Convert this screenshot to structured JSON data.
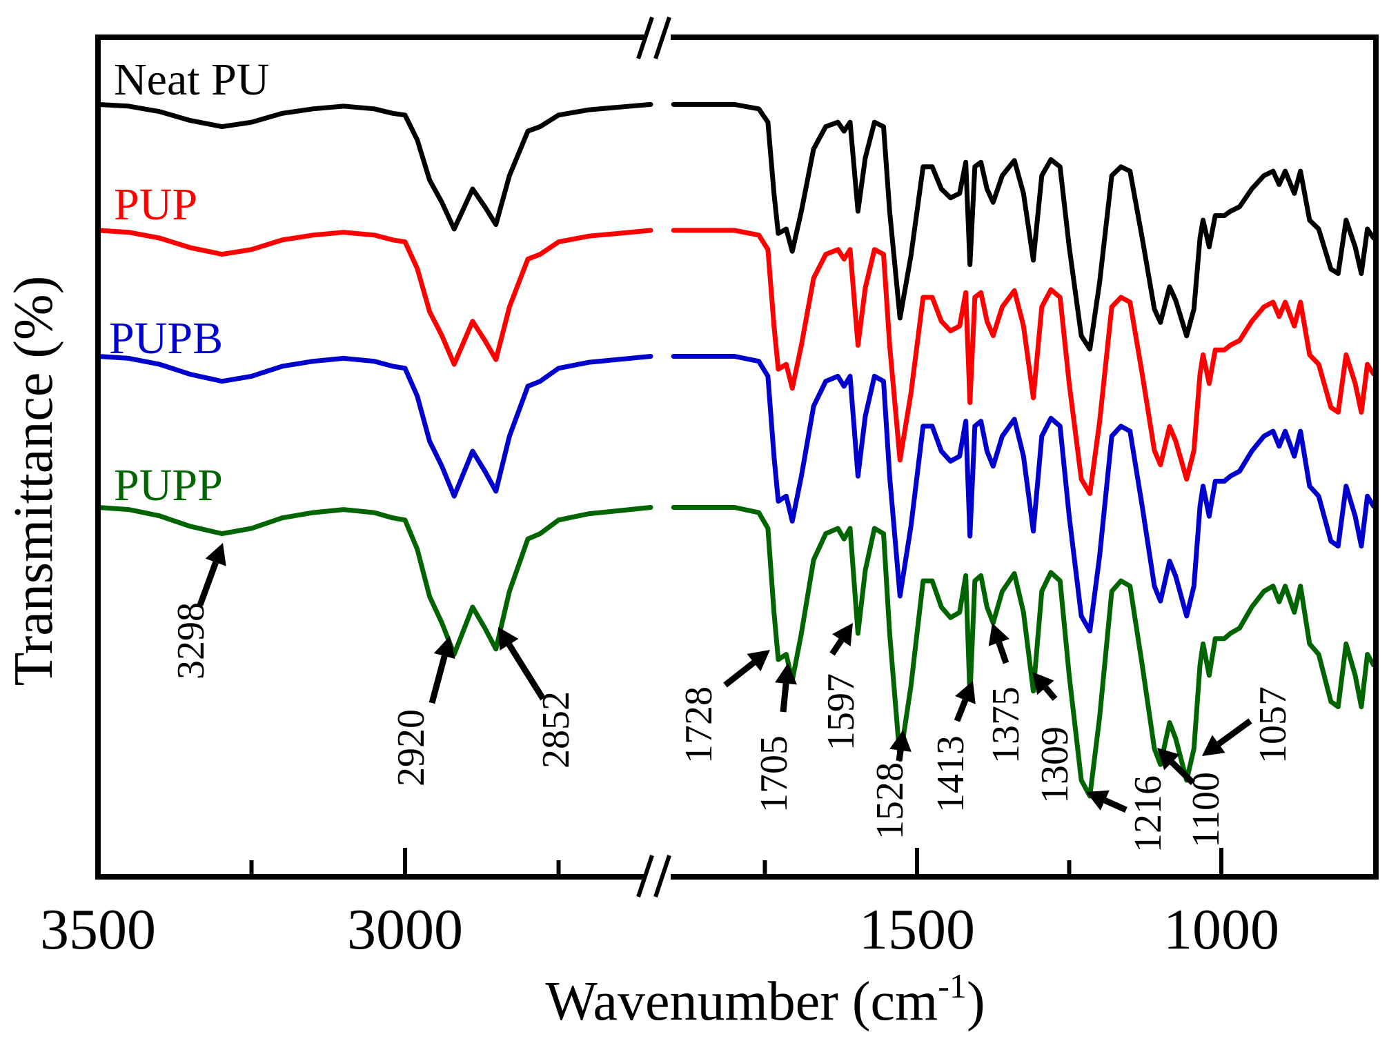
{
  "chart_data": {
    "type": "line",
    "title": "",
    "xlabel": "Wavenumber (cm",
    "xlabel_sup": "-1",
    "xlabel_close": ")",
    "ylabel": "Transmittance (%)",
    "xlim_left": [
      3500,
      2600
    ],
    "xlim_right": [
      1900,
      750
    ],
    "ylim": [
      0,
      100
    ],
    "x_ticks": [
      {
        "value": 3500,
        "label": "3500",
        "major": true
      },
      {
        "value": 3250,
        "label": "",
        "major": false
      },
      {
        "value": 3000,
        "label": "3000",
        "major": true
      },
      {
        "value": 2750,
        "label": "",
        "major": false
      },
      {
        "value": 1750,
        "label": "",
        "major": false
      },
      {
        "value": 1500,
        "label": "1500",
        "major": true
      },
      {
        "value": 1250,
        "label": "",
        "major": false
      },
      {
        "value": 1000,
        "label": "1000",
        "major": true
      }
    ],
    "axis_break": true,
    "profile_note": "relative transmittance drop (%) vs wavenumber, shared shape",
    "profile_left": [
      [
        3500,
        0
      ],
      [
        3450,
        0.2
      ],
      [
        3400,
        0.8
      ],
      [
        3350,
        1.8
      ],
      [
        3298,
        2.5
      ],
      [
        3250,
        2.0
      ],
      [
        3200,
        1.0
      ],
      [
        3150,
        0.5
      ],
      [
        3100,
        0.2
      ],
      [
        3050,
        0.5
      ],
      [
        3020,
        1.0
      ],
      [
        3000,
        1.2
      ],
      [
        2980,
        4.0
      ],
      [
        2960,
        8.5
      ],
      [
        2940,
        11.0
      ],
      [
        2920,
        14.0
      ],
      [
        2890,
        9.5
      ],
      [
        2870,
        11.5
      ],
      [
        2852,
        13.5
      ],
      [
        2830,
        8.0
      ],
      [
        2800,
        3.0
      ],
      [
        2780,
        2.5
      ],
      [
        2750,
        1.2
      ],
      [
        2700,
        0.6
      ],
      [
        2650,
        0.3
      ],
      [
        2600,
        0
      ]
    ],
    "profile_right": [
      [
        1900,
        0
      ],
      [
        1800,
        0
      ],
      [
        1760,
        0.5
      ],
      [
        1745,
        2.0
      ],
      [
        1735,
        10.0
      ],
      [
        1728,
        14.5
      ],
      [
        1715,
        14.0
      ],
      [
        1705,
        16.5
      ],
      [
        1690,
        12.0
      ],
      [
        1670,
        5.0
      ],
      [
        1650,
        2.5
      ],
      [
        1630,
        2.0
      ],
      [
        1620,
        3.0
      ],
      [
        1610,
        2.0
      ],
      [
        1597,
        12.0
      ],
      [
        1585,
        6.0
      ],
      [
        1570,
        2.0
      ],
      [
        1555,
        2.5
      ],
      [
        1545,
        12.0
      ],
      [
        1528,
        24.0
      ],
      [
        1510,
        17.0
      ],
      [
        1490,
        7.0
      ],
      [
        1475,
        7.0
      ],
      [
        1460,
        9.5
      ],
      [
        1445,
        10.5
      ],
      [
        1430,
        10.0
      ],
      [
        1420,
        6.5
      ],
      [
        1413,
        18.0
      ],
      [
        1405,
        7.0
      ],
      [
        1395,
        6.5
      ],
      [
        1385,
        9.5
      ],
      [
        1375,
        11.0
      ],
      [
        1360,
        8.0
      ],
      [
        1340,
        6.3
      ],
      [
        1325,
        10.0
      ],
      [
        1309,
        17.5
      ],
      [
        1295,
        8.0
      ],
      [
        1280,
        6.2
      ],
      [
        1265,
        7.0
      ],
      [
        1250,
        16.0
      ],
      [
        1230,
        26.0
      ],
      [
        1216,
        27.5
      ],
      [
        1200,
        20.0
      ],
      [
        1180,
        8.0
      ],
      [
        1165,
        7.0
      ],
      [
        1150,
        7.5
      ],
      [
        1130,
        15.0
      ],
      [
        1110,
        23.0
      ],
      [
        1100,
        24.5
      ],
      [
        1085,
        20.5
      ],
      [
        1075,
        22.0
      ],
      [
        1057,
        26.0
      ],
      [
        1045,
        23.0
      ],
      [
        1035,
        15.0
      ],
      [
        1030,
        13.0
      ],
      [
        1020,
        16.0
      ],
      [
        1010,
        12.5
      ],
      [
        995,
        12.5
      ],
      [
        985,
        12.0
      ],
      [
        970,
        11.5
      ],
      [
        950,
        9.5
      ],
      [
        930,
        8.0
      ],
      [
        915,
        7.5
      ],
      [
        905,
        9.0
      ],
      [
        895,
        7.5
      ],
      [
        880,
        10.0
      ],
      [
        870,
        7.5
      ],
      [
        855,
        13.0
      ],
      [
        840,
        14.0
      ],
      [
        820,
        18.5
      ],
      [
        808,
        19.0
      ],
      [
        795,
        13.0
      ],
      [
        780,
        16.0
      ],
      [
        770,
        19.0
      ],
      [
        760,
        14.0
      ],
      [
        750,
        15.0
      ]
    ],
    "series": [
      {
        "name": "Neat PU",
        "color": "#000000",
        "offset": 92,
        "scale": 1.06
      },
      {
        "name": "PUP",
        "color": "#ff0000",
        "offset": 77,
        "scale": 1.14
      },
      {
        "name": "PUPB",
        "color": "#0000cc",
        "offset": 62,
        "scale": 1.19
      },
      {
        "name": "PUPP",
        "color": "#006400",
        "offset": 44,
        "scale": 1.25
      }
    ],
    "annotations": [
      "3298",
      "2920",
      "2852",
      "1728",
      "1705",
      "1597",
      "1528",
      "1413",
      "1375",
      "1309",
      "1216",
      "1100",
      "1057"
    ]
  }
}
